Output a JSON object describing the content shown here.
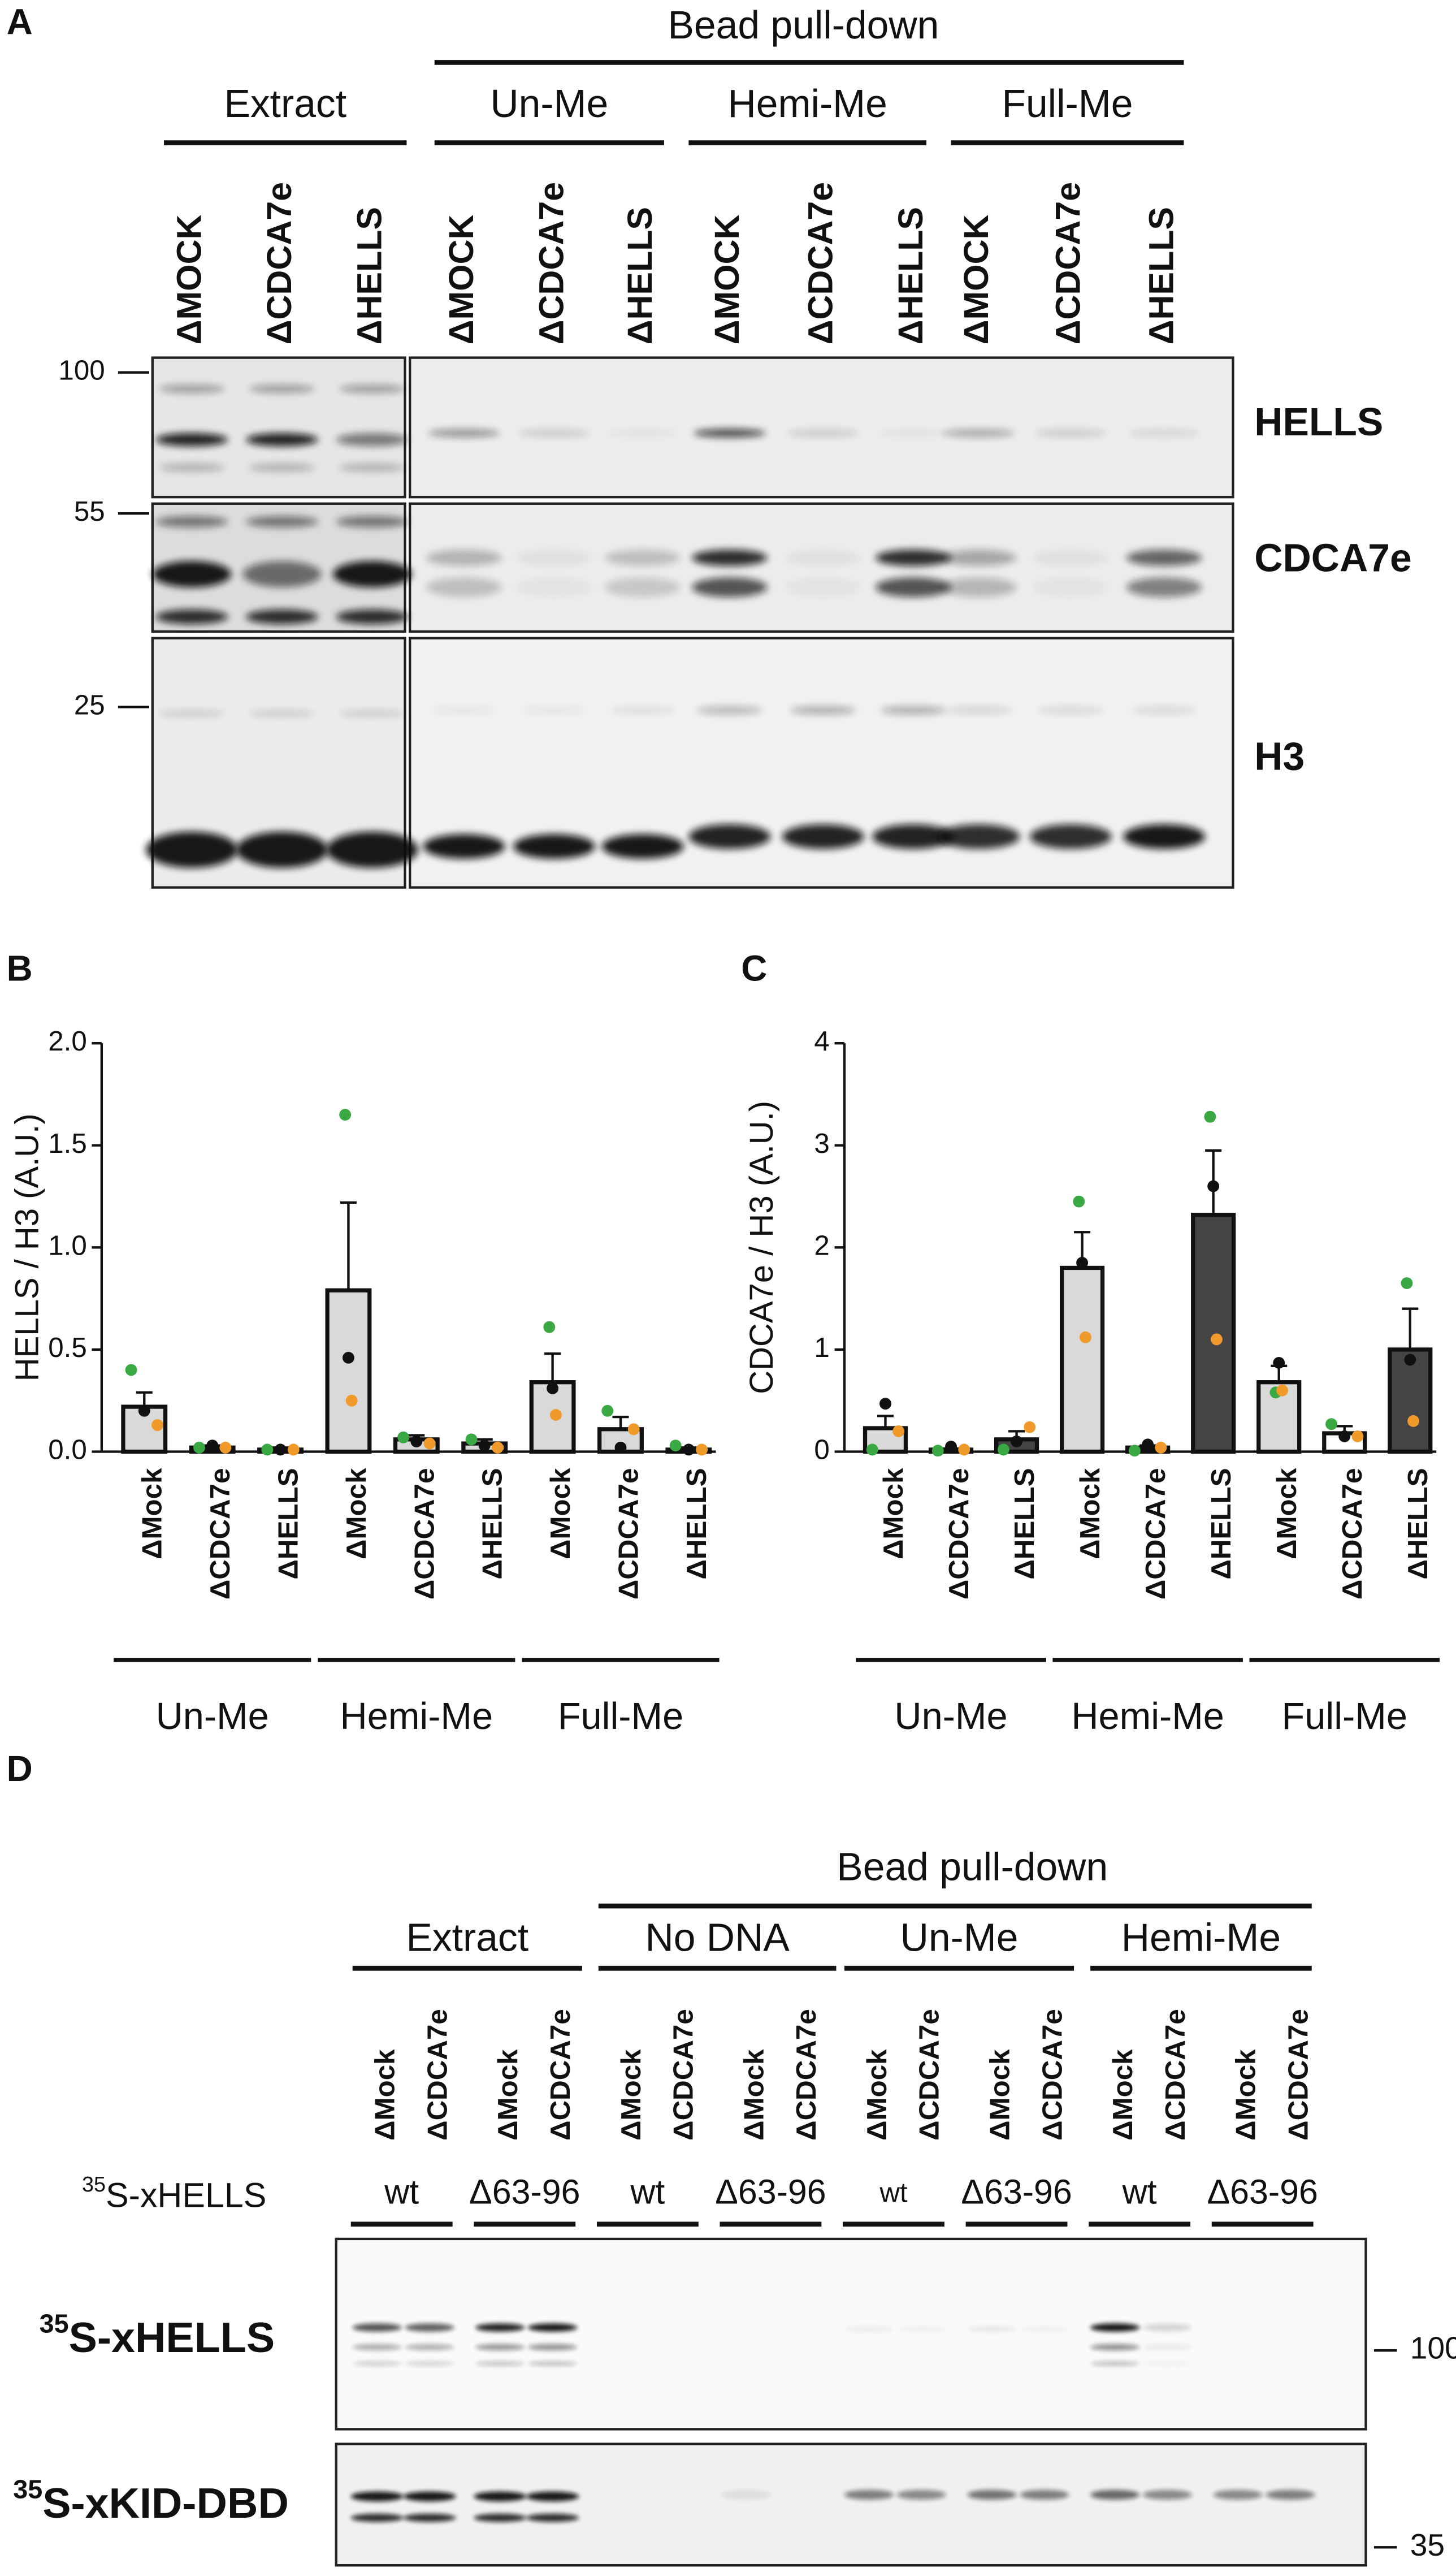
{
  "panel_a": {
    "label": "A",
    "pulldown": "Bead pull-down",
    "groups": [
      "Extract",
      "Un-Me",
      "Hemi-Me",
      "Full-Me"
    ],
    "lanes": [
      "ΔMOCK",
      "ΔCDCA7e",
      "ΔHELLS",
      "ΔMOCK",
      "ΔCDCA7e",
      "ΔHELLS",
      "ΔMOCK",
      "ΔCDCA7e",
      "ΔHELLS",
      "ΔMOCK",
      "ΔCDCA7e",
      "ΔHELLS"
    ],
    "markers": [
      100,
      55,
      25
    ],
    "blots": [
      "HELLS",
      "CDCA7e",
      "H3"
    ]
  },
  "chart_data": [
    {
      "type": "bar",
      "panel": "B",
      "ylabel": "HELLS / H3 (A.U.)",
      "categories": [
        "ΔMock",
        "ΔCDCA7e",
        "ΔHELLS",
        "ΔMock",
        "ΔCDCA7e",
        "ΔHELLS",
        "ΔMock",
        "ΔCDCA7e",
        "ΔHELLS"
      ],
      "groups": [
        "Un-Me",
        "Hemi-Me",
        "Full-Me"
      ],
      "values": [
        0.22,
        0.02,
        0.01,
        0.79,
        0.06,
        0.04,
        0.34,
        0.11,
        0.01
      ],
      "errors": [
        0.07,
        0.01,
        0.01,
        0.43,
        0.02,
        0.02,
        0.14,
        0.06,
        0.01
      ],
      "colors": [
        "#d9d9d9",
        "#d9d9d9",
        "#d9d9d9",
        "#d9d9d9",
        "#d9d9d9",
        "#d9d9d9",
        "#d9d9d9",
        "#d9d9d9",
        "#d9d9d9"
      ],
      "points": [
        {
          "color": "#3aa843",
          "values": [
            0.4,
            0.02,
            0.01,
            1.65,
            0.07,
            0.06,
            0.61,
            0.2,
            0.03
          ]
        },
        {
          "color": "#111111",
          "values": [
            0.2,
            0.03,
            0.01,
            0.46,
            0.05,
            0.03,
            0.31,
            0.02,
            0.01
          ]
        },
        {
          "color": "#ef9a2a",
          "values": [
            0.13,
            0.02,
            0.01,
            0.25,
            0.04,
            0.02,
            0.18,
            0.11,
            0.01
          ]
        }
      ],
      "ylim": [
        0,
        2
      ],
      "yticks": [
        {
          "value": 0,
          "label": "0.0"
        },
        0.5,
        {
          "value": 1,
          "label": "1.0"
        },
        1.5,
        {
          "value": 2,
          "label": "2.0"
        }
      ]
    },
    {
      "type": "bar",
      "panel": "C",
      "ylabel": "CDCA7e / H3 (A.U.)",
      "categories": [
        "ΔMock",
        "ΔCDCA7e",
        "ΔHELLS",
        "ΔMock",
        "ΔCDCA7e",
        "ΔHELLS",
        "ΔMock",
        "ΔCDCA7e",
        "ΔHELLS"
      ],
      "groups": [
        "Un-Me",
        "Hemi-Me",
        "Full-Me"
      ],
      "values": [
        0.23,
        0.02,
        0.12,
        1.8,
        0.04,
        2.32,
        0.68,
        0.18,
        1.0
      ],
      "errors": [
        0.12,
        0.01,
        0.08,
        0.35,
        0.02,
        0.63,
        0.16,
        0.07,
        0.4
      ],
      "colors": [
        "#d9d9d9",
        "#ffffff",
        "#444444",
        "#d9d9d9",
        "#ffffff",
        "#444444",
        "#d9d9d9",
        "#ffffff",
        "#444444"
      ],
      "points": [
        {
          "color": "#3aa843",
          "values": [
            0.02,
            0.01,
            0.02,
            2.45,
            0.01,
            3.28,
            0.58,
            0.27,
            1.65
          ]
        },
        {
          "color": "#111111",
          "values": [
            0.47,
            0.05,
            0.1,
            1.85,
            0.07,
            2.6,
            0.87,
            0.15,
            0.9
          ]
        },
        {
          "color": "#ef9a2a",
          "values": [
            0.2,
            0.02,
            0.24,
            1.12,
            0.04,
            1.1,
            0.6,
            0.15,
            0.3
          ]
        }
      ],
      "ylim": [
        0,
        4
      ],
      "yticks": [
        0,
        1,
        2,
        3,
        4
      ]
    }
  ],
  "panel_d": {
    "label": "D",
    "pulldown": "Bead pull-down",
    "groups": [
      "Extract",
      "No DNA",
      "Un-Me",
      "Hemi-Me"
    ],
    "lanes": [
      "ΔMock",
      "ΔCDCA7e",
      "ΔMock",
      "ΔCDCA7e",
      "ΔMock",
      "ΔCDCA7e",
      "ΔMock",
      "ΔCDCA7e",
      "ΔMock",
      "ΔCDCA7e",
      "ΔMock",
      "ΔCDCA7e",
      "ΔMock",
      "ΔCDCA7e",
      "ΔMock",
      "ΔCDCA7e"
    ],
    "construct": {
      "sup": "35",
      "text": "S-xHELLS"
    },
    "genotypes": [
      "wt",
      "Δ63-96",
      "wt",
      "Δ63-96",
      "wt",
      "Δ63-96",
      "wt",
      "Δ63-96"
    ],
    "blots": [
      {
        "sup": "35",
        "text": "S-xHELLS"
      },
      {
        "sup": "35",
        "text": "S-xKID-DBD"
      }
    ],
    "markers": [
      100,
      35
    ]
  }
}
